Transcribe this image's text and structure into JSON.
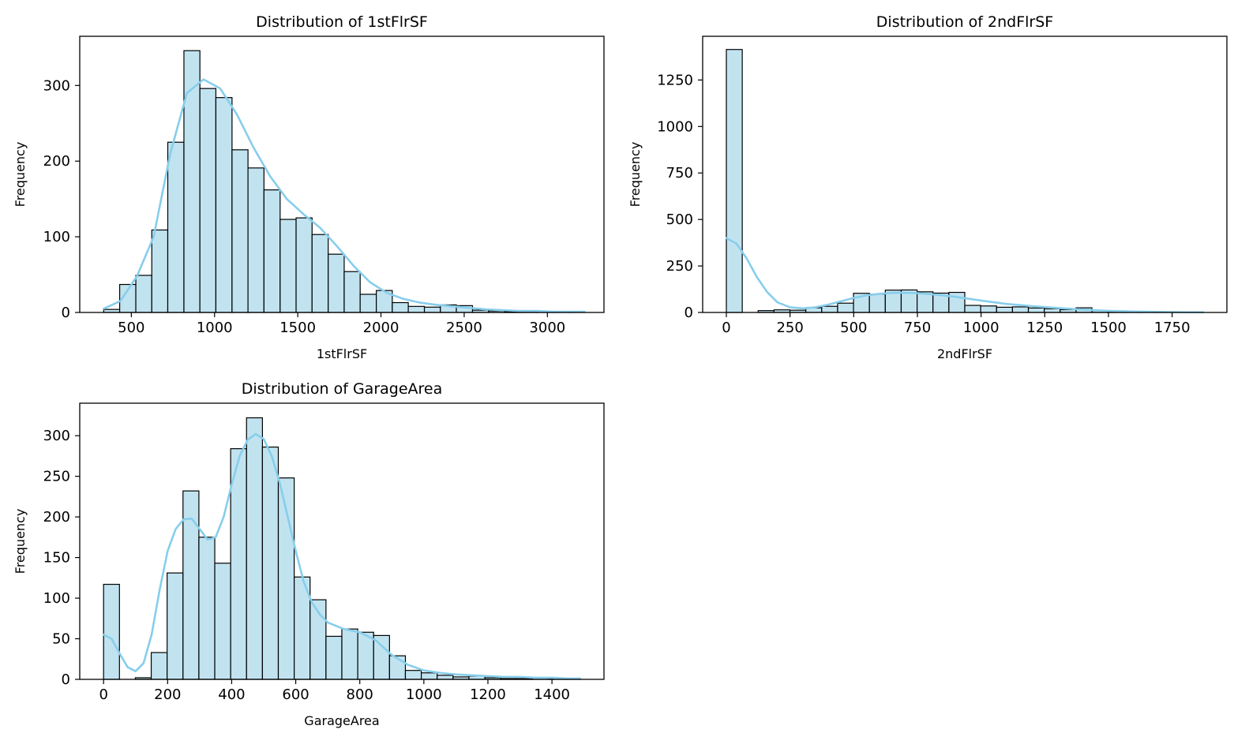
{
  "chart_data": [
    {
      "type": "histogram",
      "title": "Distribution of 1stFlrSF",
      "xlabel": "1stFlrSF",
      "ylabel": "Frequency",
      "xlim": [
        190,
        3340
      ],
      "ylim": [
        0,
        365
      ],
      "xticks": [
        500,
        1000,
        1500,
        2000,
        2500,
        3000
      ],
      "yticks": [
        0,
        100,
        200,
        300
      ],
      "bin_edges": [
        334,
        430,
        527,
        623,
        719,
        816,
        912,
        1008,
        1105,
        1201,
        1297,
        1394,
        1490,
        1586,
        1683,
        1779,
        1875,
        1972,
        2068,
        2164,
        2261,
        2357,
        2453,
        2550,
        2646,
        2742,
        2839,
        2935,
        3031,
        3128,
        3224
      ],
      "counts": [
        4,
        37,
        49,
        109,
        225,
        346,
        296,
        284,
        215,
        191,
        162,
        123,
        125,
        103,
        77,
        54,
        24,
        29,
        13,
        8,
        7,
        10,
        9,
        3,
        2,
        1,
        1,
        1,
        1,
        1
      ],
      "kde": {
        "x": [
          334,
          434,
          534,
          634,
          734,
          834,
          934,
          1034,
          1134,
          1234,
          1334,
          1434,
          1534,
          1634,
          1734,
          1834,
          1934,
          2034,
          2134,
          2234,
          2334,
          2434,
          2534,
          2634,
          2734,
          2834,
          2934,
          3034,
          3134,
          3224
        ],
        "y": [
          5,
          15,
          48,
          100,
          210,
          290,
          308,
          296,
          262,
          218,
          180,
          150,
          130,
          112,
          88,
          62,
          40,
          26,
          18,
          13,
          10,
          8,
          6,
          4,
          3,
          2,
          2,
          1,
          1,
          1
        ]
      },
      "bar_color": "#c1e3f0",
      "line_color": "#87ceeb"
    },
    {
      "type": "histogram",
      "title": "Distribution of 2ndFlrSF",
      "xlabel": "2ndFlrSF",
      "ylabel": "Frequency",
      "xlim": [
        -93,
        1965
      ],
      "ylim": [
        0,
        1485
      ],
      "xticks": [
        0,
        250,
        500,
        750,
        1000,
        1250,
        1500,
        1750
      ],
      "yticks": [
        0,
        250,
        500,
        750,
        1000,
        1250
      ],
      "bin_edges": [
        0,
        62.4,
        124.8,
        187.2,
        249.6,
        312,
        374.4,
        436.8,
        499.2,
        561.6,
        624,
        686.4,
        748.8,
        811.2,
        873.6,
        936,
        998.4,
        1060.8,
        1123.2,
        1185.6,
        1248,
        1310.4,
        1372.8,
        1435.2,
        1497.6,
        1560,
        1622.4,
        1684.8,
        1747.2,
        1809.6,
        1872
      ],
      "counts": [
        1414,
        0,
        10,
        14,
        12,
        25,
        33,
        50,
        103,
        98,
        120,
        121,
        111,
        104,
        108,
        38,
        35,
        28,
        30,
        24,
        20,
        15,
        25,
        10,
        6,
        3,
        2,
        1,
        0,
        1
      ],
      "kde": {
        "x": [
          0,
          40,
          80,
          120,
          160,
          200,
          250,
          300,
          350,
          400,
          450,
          500,
          550,
          600,
          650,
          700,
          750,
          800,
          850,
          900,
          950,
          1000,
          1100,
          1200,
          1300,
          1400,
          1500,
          1600,
          1700,
          1800,
          1872
        ],
        "y": [
          400,
          370,
          290,
          190,
          110,
          55,
          28,
          22,
          28,
          42,
          60,
          78,
          92,
          100,
          105,
          106,
          104,
          99,
          92,
          84,
          74,
          64,
          46,
          34,
          24,
          15,
          9,
          5,
          3,
          1,
          1
        ]
      },
      "bar_color": "#c1e3f0",
      "line_color": "#87ceeb"
    },
    {
      "type": "histogram",
      "title": "Distribution of GarageArea",
      "xlabel": "GarageArea",
      "ylabel": "Frequency",
      "xlim": [
        -74.4,
        1562.4
      ],
      "ylim": [
        0,
        340
      ],
      "xticks": [
        0,
        200,
        400,
        600,
        800,
        1000,
        1200,
        1400
      ],
      "yticks": [
        0,
        50,
        100,
        150,
        200,
        250,
        300
      ],
      "bin_edges": [
        0,
        49.6,
        99.2,
        148.8,
        198.4,
        248,
        297.6,
        347.2,
        396.8,
        446.4,
        496,
        545.6,
        595.2,
        644.8,
        694.4,
        744,
        793.6,
        843.2,
        892.8,
        942.4,
        992,
        1041.6,
        1091.2,
        1140.8,
        1190.4,
        1240,
        1289.6,
        1339.2,
        1388.8,
        1438.4,
        1488
      ],
      "counts": [
        117,
        0,
        2,
        33,
        131,
        232,
        175,
        143,
        284,
        322,
        286,
        248,
        126,
        98,
        53,
        62,
        58,
        54,
        29,
        11,
        8,
        5,
        3,
        4,
        2,
        1,
        1,
        2,
        1,
        1
      ],
      "kde": {
        "x": [
          0,
          25,
          50,
          75,
          100,
          125,
          150,
          175,
          200,
          225,
          250,
          275,
          300,
          325,
          350,
          375,
          400,
          425,
          450,
          475,
          500,
          525,
          550,
          575,
          600,
          625,
          650,
          675,
          700,
          750,
          800,
          850,
          900,
          950,
          1000,
          1050,
          1100,
          1150,
          1200,
          1250,
          1300,
          1350,
          1400,
          1450,
          1488
        ],
        "y": [
          55,
          50,
          32,
          15,
          10,
          20,
          55,
          110,
          158,
          185,
          197,
          198,
          185,
          172,
          175,
          200,
          240,
          275,
          295,
          302,
          296,
          275,
          242,
          200,
          158,
          120,
          95,
          80,
          70,
          62,
          58,
          48,
          30,
          18,
          11,
          8,
          6,
          5,
          4,
          3,
          3,
          2,
          2,
          1,
          1
        ]
      },
      "bar_color": "#c1e3f0",
      "line_color": "#87ceeb"
    }
  ]
}
